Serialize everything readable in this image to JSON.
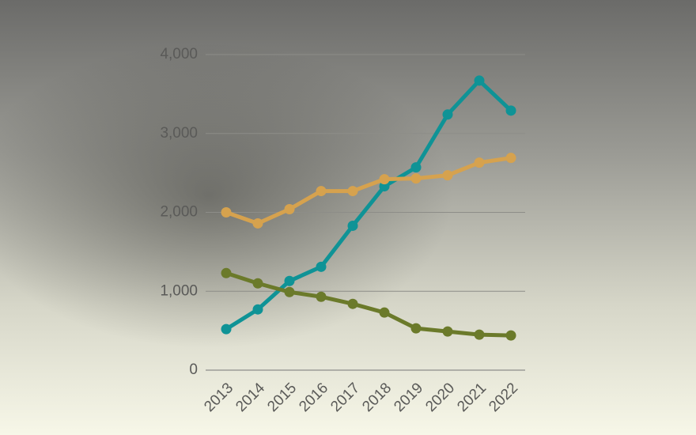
{
  "chart_data": {
    "type": "line",
    "categories": [
      "2013",
      "2014",
      "2015",
      "2016",
      "2017",
      "2018",
      "2019",
      "2020",
      "2021",
      "2022"
    ],
    "series": [
      {
        "color": "#0f9396",
        "values": [
          520,
          770,
          1130,
          1310,
          1830,
          2330,
          2570,
          3240,
          3670,
          3290
        ]
      },
      {
        "color": "#d6a24e",
        "values": [
          2000,
          1860,
          2040,
          2270,
          2270,
          2420,
          2430,
          2470,
          2630,
          2690
        ]
      },
      {
        "color": "#6b7a2a",
        "values": [
          1230,
          1100,
          990,
          930,
          840,
          730,
          530,
          490,
          450,
          440
        ]
      }
    ],
    "ylim": [
      0,
      4000
    ],
    "yticks": [
      0,
      {
        "value": 1000,
        "label": "1,000"
      },
      {
        "value": 2000,
        "label": "2,000"
      },
      {
        "value": 3000,
        "label": "3,000"
      },
      {
        "value": 4000,
        "label": "4,000"
      }
    ],
    "grid": true
  }
}
